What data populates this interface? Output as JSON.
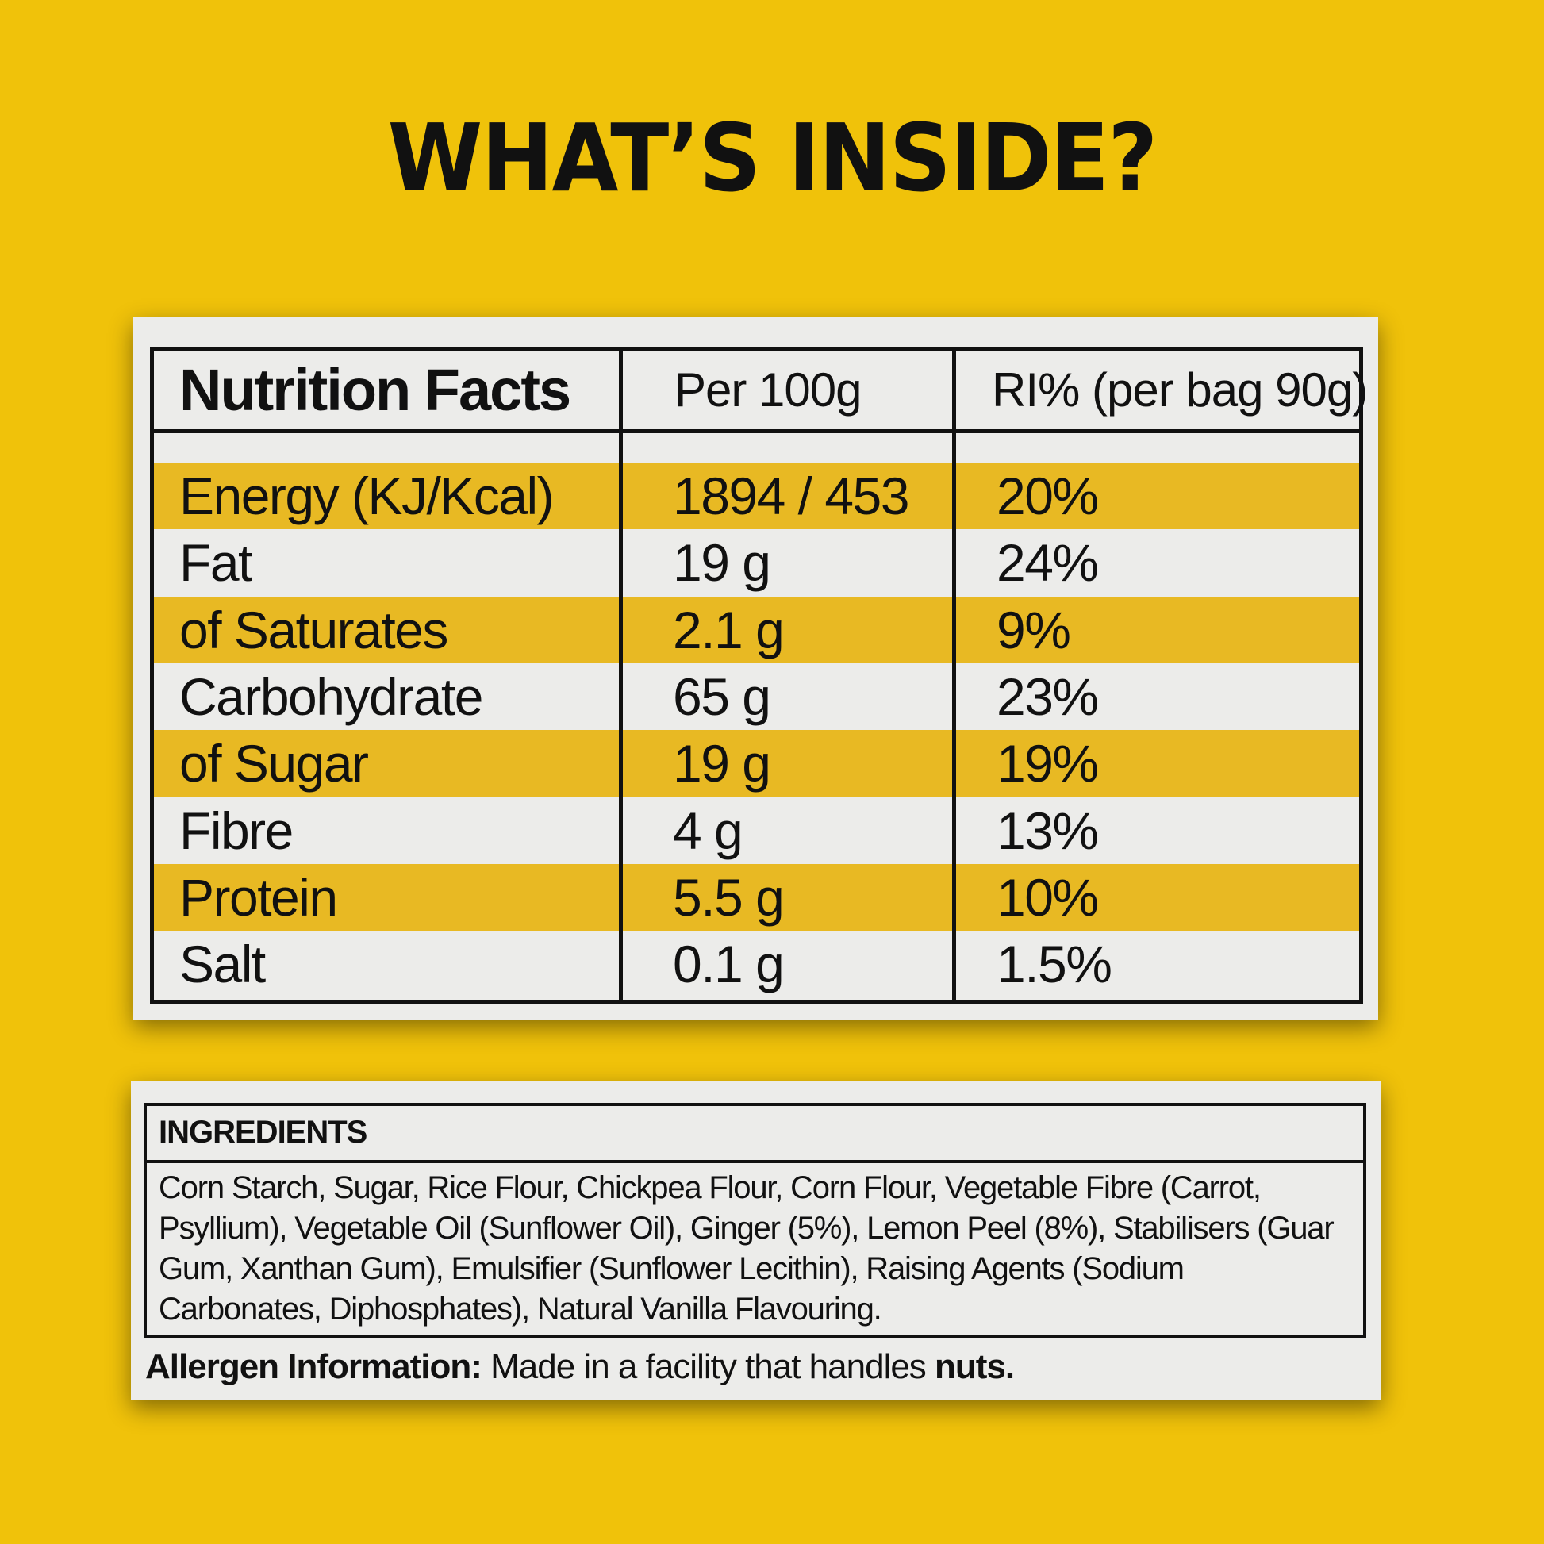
{
  "header": {
    "title": "WHAT’S INSIDE?"
  },
  "table": {
    "columns": [
      "Nutrition Facts",
      "Per 100g",
      "RI% (per bag 90g)"
    ],
    "rows": [
      [
        "Energy (KJ/Kcal)",
        "1894 / 453",
        "20%"
      ],
      [
        "Fat",
        "19 g",
        "24%"
      ],
      [
        "of Saturates",
        "2.1 g",
        "9%"
      ],
      [
        "Carbohydrate",
        "65 g",
        "23%"
      ],
      [
        "of Sugar",
        "19 g",
        "19%"
      ],
      [
        "Fibre",
        "4 g",
        "13%"
      ],
      [
        "Protein",
        "5.5 g",
        "10%"
      ],
      [
        "Salt",
        "0.1 g",
        "1.5%"
      ]
    ]
  },
  "ingredients": {
    "title": "INGREDIENTS",
    "text": "Corn Starch, Sugar, Rice Flour, Chickpea Flour, Corn Flour, Vegetable Fibre (Carrot, Psyllium), Vegetable Oil (Sunflower Oil), Ginger (5%), Lemon Peel (8%), Stabilisers (Guar Gum, Xanthan Gum), Emulsifier (Sunflower Lecithin), Raising Agents (Sodium Carbonates, Diphosphates), Natural Vanilla Flavouring."
  },
  "allergen": {
    "label": "Allergen Information:",
    "text": "Made in a facility that handles",
    "emphasis": "nuts."
  }
}
